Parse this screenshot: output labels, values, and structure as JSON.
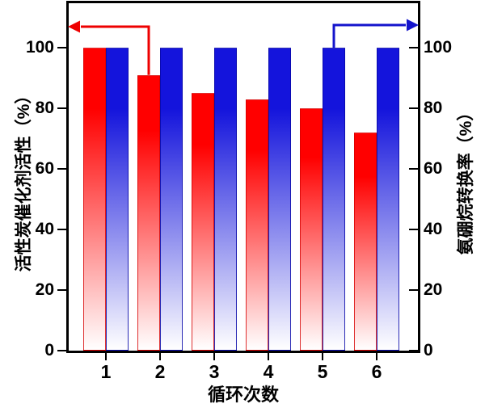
{
  "figure": {
    "background_color": "#ffffff",
    "frame_color": "#000000"
  },
  "chart_data": {
    "type": "bar",
    "title": "",
    "xlabel": "循环次数",
    "categories": [
      "1",
      "2",
      "3",
      "4",
      "5",
      "6"
    ],
    "left_axis": {
      "label": "活性炭催化剂活性（%）",
      "ticks": [
        0,
        20,
        40,
        60,
        80,
        100
      ],
      "lim": [
        0,
        115
      ],
      "tick_direction": "out"
    },
    "right_axis": {
      "label": "氨硼烷转换率（%）",
      "ticks": [
        0,
        20,
        40,
        60,
        80,
        100
      ],
      "lim": [
        0,
        115
      ],
      "tick_direction": "in"
    },
    "grid": false,
    "legend_position": "none",
    "series": [
      {
        "name": "活性炭催化剂活性",
        "axis": "left",
        "color": "#ff0000",
        "edge_color": "rgba(214,0,0,0.8)",
        "values": [
          100,
          91,
          85,
          83,
          80,
          72
        ]
      },
      {
        "name": "氨硼烷转换率",
        "axis": "right",
        "color": "#1414dc",
        "edge_color": "rgba(8,8,168,0.85)",
        "values": [
          100,
          100,
          100,
          100,
          100,
          100
        ]
      }
    ],
    "annotations": [
      {
        "type": "arrow",
        "series_index": 0,
        "category_index": 1,
        "direction": "left",
        "target": "left-axis",
        "color": "#ee0000"
      },
      {
        "type": "arrow",
        "series_index": 1,
        "category_index": 4,
        "direction": "right",
        "target": "right-axis",
        "color": "#1414cc"
      }
    ]
  }
}
